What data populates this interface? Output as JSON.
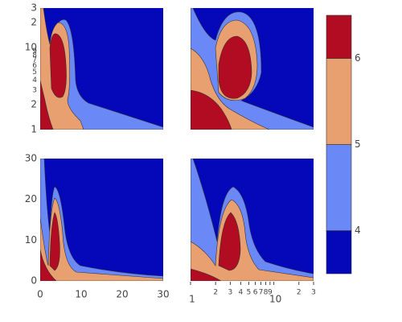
{
  "chart_data": [
    {
      "type": "contour",
      "ylog": true,
      "ylim": [
        1,
        30
      ],
      "yticks": [
        1,
        2,
        3,
        4,
        5,
        6,
        7,
        8,
        9,
        10,
        {
          "value": 20,
          "label": "2"
        },
        {
          "value": 30,
          "label": "3"
        }
      ]
    },
    {
      "type": "contour"
    },
    {
      "type": "contour",
      "xlim": [
        0,
        30
      ],
      "xticks": [
        0,
        10,
        20,
        30
      ],
      "ylim": [
        0,
        30
      ],
      "yticks": [
        0,
        10,
        20,
        30
      ]
    },
    {
      "type": "contour",
      "xlog": true,
      "xlim": [
        1,
        30
      ],
      "xticks": [
        1,
        2,
        3,
        4,
        5,
        6,
        7,
        8,
        9,
        10,
        {
          "value": 20,
          "label": "2"
        },
        {
          "value": 30,
          "label": "3"
        }
      ]
    },
    {
      "type": "colorbar",
      "zlim": [
        3.5,
        6.5
      ],
      "zticks": [
        4,
        5,
        6
      ],
      "colors": [
        "#0508b8",
        "#6a89f7",
        "#e8a070",
        "#b10c21"
      ]
    }
  ]
}
